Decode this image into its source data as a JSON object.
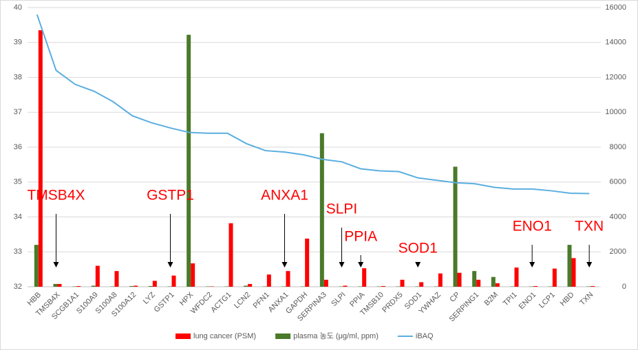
{
  "chart_data": {
    "type": "combo",
    "categories": [
      "HBB",
      "TMSB4X",
      "SCGB1A1",
      "S100A9",
      "S100A8",
      "S100A12",
      "LYZ",
      "GSTP1",
      "HPX",
      "WFDC2",
      "ACTG1",
      "LCN2",
      "PFN1",
      "ANXA1",
      "GAPDH",
      "SERPINA3",
      "SLPI",
      "PPIA",
      "TMSB10",
      "PRDX5",
      "SOD1",
      "YWHAZ",
      "CP",
      "SERPING1",
      "B2M",
      "TPI1",
      "ENO1",
      "LCP1",
      "HBD",
      "TXN"
    ],
    "series": [
      {
        "name": "lung cancer (PSM)",
        "color": "#ff0000",
        "kind": "bar",
        "axis": "y2",
        "values": [
          14700,
          160,
          40,
          1200,
          900,
          60,
          340,
          640,
          1340,
          20,
          3640,
          160,
          700,
          900,
          2760,
          400,
          60,
          1060,
          40,
          400,
          260,
          760,
          800,
          400,
          200,
          1100,
          40,
          1040,
          1640,
          40
        ]
      },
      {
        "name": "plasma 농도 (μg/ml, ppm)",
        "color": "#4a7a2a",
        "kind": "bar",
        "axis": "y2",
        "values": [
          2400,
          160,
          20,
          60,
          20,
          40,
          40,
          20,
          14440,
          20,
          20,
          60,
          20,
          20,
          20,
          8800,
          20,
          20,
          20,
          20,
          20,
          20,
          6880,
          900,
          560,
          20,
          20,
          20,
          2400,
          20
        ]
      },
      {
        "name": "iBAQ",
        "color": "#5aaee0",
        "kind": "line",
        "values": [
          39.8,
          38.2,
          37.8,
          37.6,
          37.3,
          36.9,
          36.7,
          36.55,
          36.42,
          36.4,
          36.4,
          36.1,
          35.9,
          35.86,
          35.78,
          35.65,
          35.58,
          35.38,
          35.32,
          35.3,
          35.12,
          35.05,
          34.98,
          34.95,
          34.85,
          34.8,
          34.8,
          34.75,
          34.68,
          34.67
        ]
      }
    ],
    "ylim": [
      32,
      40
    ],
    "yticks": [
      32,
      33,
      34,
      35,
      36,
      37,
      38,
      39,
      40
    ],
    "y2lim": [
      0,
      16000
    ],
    "y2ticks": [
      0,
      2000,
      4000,
      6000,
      8000,
      10000,
      12000,
      14000,
      16000
    ],
    "grid": true,
    "annotations": [
      {
        "text": "TMSB4X"
      },
      {
        "text": "GSTP1"
      },
      {
        "text": "ANXA1"
      },
      {
        "text": "SLPI"
      },
      {
        "text": "PPIA"
      },
      {
        "text": "SOD1"
      },
      {
        "text": "ENO1"
      },
      {
        "text": "TXN"
      }
    ]
  }
}
